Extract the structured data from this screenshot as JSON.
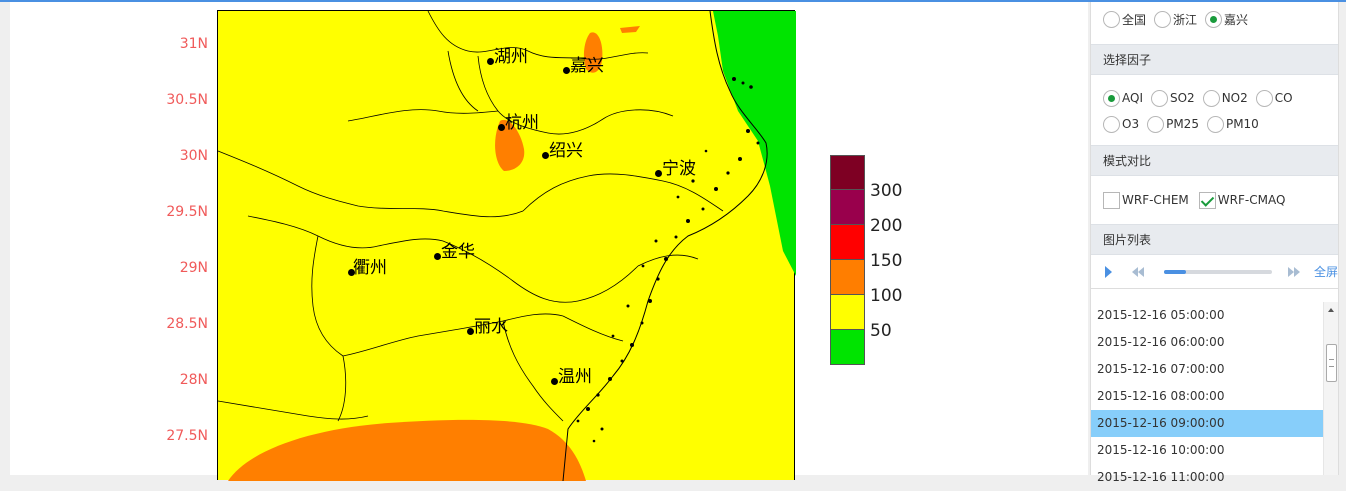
{
  "map": {
    "lat_labels": [
      "31N",
      "30.5N",
      "30N",
      "29.5N",
      "29N",
      "28.5N",
      "28N",
      "27.5N"
    ],
    "cities": [
      {
        "name": "湖州"
      },
      {
        "name": "嘉兴"
      },
      {
        "name": "杭州"
      },
      {
        "name": "绍兴"
      },
      {
        "name": "宁波"
      },
      {
        "name": "衢州"
      },
      {
        "name": "金华"
      },
      {
        "name": "丽水"
      },
      {
        "name": "温州"
      }
    ],
    "colors": {
      "background": "#ffff00",
      "orange": "#ff7f00",
      "green": "#00e400",
      "border": "#000000"
    }
  },
  "legend": {
    "swatch_colors": [
      "#7e0023",
      "#99004c",
      "#ff0000",
      "#ff7e00",
      "#ffff00",
      "#00e400"
    ],
    "labels": [
      "300",
      "200",
      "150",
      "100",
      "50"
    ]
  },
  "panel": {
    "region_options": [
      {
        "label": "全国",
        "checked": false
      },
      {
        "label": "浙江",
        "checked": false
      },
      {
        "label": "嘉兴",
        "checked": true
      }
    ],
    "factor_heading": "选择因子",
    "factor_options_row1": [
      {
        "label": "AQI",
        "checked": true
      },
      {
        "label": "SO2",
        "checked": false
      },
      {
        "label": "NO2",
        "checked": false
      },
      {
        "label": "CO",
        "checked": false
      }
    ],
    "factor_options_row2": [
      {
        "label": "O3",
        "checked": false
      },
      {
        "label": "PM25",
        "checked": false
      },
      {
        "label": "PM10",
        "checked": false
      }
    ],
    "model_heading": "模式对比",
    "model_options": [
      {
        "label": "WRF-CHEM",
        "checked": false
      },
      {
        "label": "WRF-CMAQ",
        "checked": true
      }
    ],
    "image_list_heading": "图片列表",
    "player": {
      "fullscreen_label": "全屏",
      "progress": 0.2
    },
    "timestamps": [
      "2015-12-16 05:00:00",
      "2015-12-16 06:00:00",
      "2015-12-16 07:00:00",
      "2015-12-16 08:00:00",
      "2015-12-16 09:00:00",
      "2015-12-16 10:00:00",
      "2015-12-16 11:00:00"
    ],
    "selected_index": 4
  }
}
